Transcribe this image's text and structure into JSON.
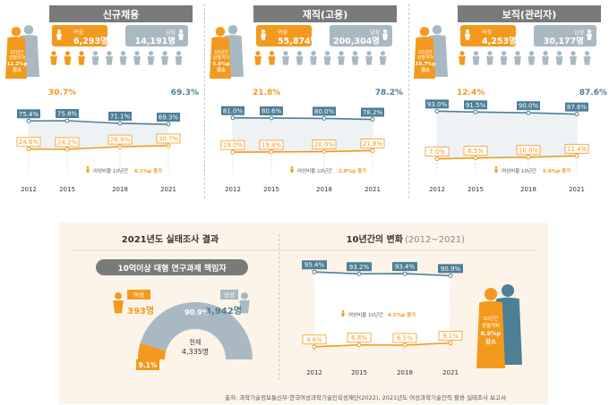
{
  "colors": {
    "orange": "#f39a1e",
    "teal": "#4d7f96",
    "gray": "#a9b9c3",
    "dark": "#555555",
    "banner": "#7a7a7a"
  },
  "years": [
    "2012",
    "2015",
    "2018",
    "2021"
  ],
  "panels": [
    {
      "title": "신규채용",
      "female_label": "여성",
      "female_count": "6,293명",
      "male_label": "남성",
      "male_count": "14,191명",
      "female_pct": "30.7%",
      "male_pct": "69.3%",
      "gap_label": [
        "10년간",
        "성별격차",
        "12.2%p",
        "감소"
      ],
      "male_share": [
        75.4,
        75.8,
        71.1,
        69.3
      ],
      "female_share": [
        24.6,
        24.2,
        28.9,
        30.7
      ],
      "male_labels": [
        "75.4%",
        "75.8%",
        "71.1%",
        "69.3%"
      ],
      "female_labels": [
        "24.6%",
        "24.2%",
        "28.9%",
        "30.7%"
      ],
      "note": "여성비율 10년간",
      "note_value": "6.1%p 증가"
    },
    {
      "title": "재직(고용)",
      "female_label": "여성",
      "female_count": "55,874명",
      "male_label": "남성",
      "male_count": "200,304명",
      "female_pct": "21.8%",
      "male_pct": "78.2%",
      "gap_label": [
        "10년간",
        "성별격차",
        "5.6%p",
        "감소"
      ],
      "male_share": [
        81.0,
        80.6,
        80.0,
        78.2
      ],
      "female_share": [
        19.0,
        19.4,
        20.0,
        21.8
      ],
      "male_labels": [
        "81.0%",
        "80.6%",
        "80.0%",
        "78.2%"
      ],
      "female_labels": [
        "19.0%",
        "19.4%",
        "20.0%",
        "21.8%"
      ],
      "note": "여성비율 10년간",
      "note_value": "2.8%p 증가"
    },
    {
      "title": "보직(관리자)",
      "female_label": "여성",
      "female_count": "4,253명",
      "male_label": "남성",
      "male_count": "30,177명",
      "female_pct": "12.4%",
      "male_pct": "87.6%",
      "gap_label": [
        "10년간",
        "성별격차",
        "10.7%p",
        "감소"
      ],
      "male_share": [
        93.0,
        91.5,
        90.0,
        87.6
      ],
      "female_share": [
        7.0,
        8.5,
        10.0,
        12.4
      ],
      "male_labels": [
        "93.0%",
        "91.5%",
        "90.0%",
        "87.6%"
      ],
      "female_labels": [
        "7.0%",
        "8.5%",
        "10.0%",
        "12.4%"
      ],
      "note": "여성비율 10년간",
      "note_value": "5.4%p 증가"
    }
  ],
  "bottom": {
    "left_title_bold": "2021년도",
    "left_title_rest": " 실태조사 결과",
    "right_title_bold": "10년간의 변화",
    "right_title_rest": " (2012~2021)",
    "pill": "10억이상 대형 연구과제 책임자",
    "female_label": "여성",
    "female_count": "393명",
    "male_label": "남성",
    "male_count": "3,942명",
    "male_pct": "90.9%",
    "female_pct": "9.1%",
    "total_label": "전체",
    "total_count": "4,335명",
    "male_share": [
      95.4,
      93.2,
      93.4,
      90.9
    ],
    "female_share": [
      4.6,
      6.8,
      6.5,
      9.1
    ],
    "male_labels": [
      "95.4%",
      "93.2%",
      "93.4%",
      "90.9%"
    ],
    "female_labels": [
      "4.6%",
      "6.8%",
      "6.5%",
      "9.1%"
    ],
    "note": "여성비율 10년간",
    "note_value": "4.5%p 증가",
    "gap_label": [
      "10년간",
      "성별격차",
      "8.9%p",
      "감소"
    ]
  },
  "source": "출처: 과학기술정보통신부·한국여성과학기술인육성재단(2022), 2021년도 여성과학기술인력 활용 실태조사 보고서",
  "chart_data": [
    {
      "type": "line",
      "title": "신규채용",
      "x": [
        "2012",
        "2015",
        "2018",
        "2021"
      ],
      "series": [
        {
          "name": "남성",
          "values": [
            75.4,
            75.8,
            71.1,
            69.3
          ]
        },
        {
          "name": "여성",
          "values": [
            24.6,
            24.2,
            28.9,
            30.7
          ]
        }
      ]
    },
    {
      "type": "line",
      "title": "재직(고용)",
      "x": [
        "2012",
        "2015",
        "2018",
        "2021"
      ],
      "series": [
        {
          "name": "남성",
          "values": [
            81.0,
            80.6,
            80.0,
            78.2
          ]
        },
        {
          "name": "여성",
          "values": [
            19.0,
            19.4,
            20.0,
            21.8
          ]
        }
      ]
    },
    {
      "type": "line",
      "title": "보직(관리자)",
      "x": [
        "2012",
        "2015",
        "2018",
        "2021"
      ],
      "series": [
        {
          "name": "남성",
          "values": [
            93.0,
            91.5,
            90.0,
            87.6
          ]
        },
        {
          "name": "여성",
          "values": [
            7.0,
            8.5,
            10.0,
            12.4
          ]
        }
      ]
    },
    {
      "type": "pie",
      "title": "10억이상 대형 연구과제 책임자",
      "categories": [
        "남성",
        "여성"
      ],
      "values": [
        90.9,
        9.1
      ]
    },
    {
      "type": "line",
      "title": "10년간의 변화 (2012~2021)",
      "x": [
        "2012",
        "2015",
        "2018",
        "2021"
      ],
      "series": [
        {
          "name": "남성",
          "values": [
            95.4,
            93.2,
            93.4,
            90.9
          ]
        },
        {
          "name": "여성",
          "values": [
            4.6,
            6.8,
            6.5,
            9.1
          ]
        }
      ]
    }
  ]
}
